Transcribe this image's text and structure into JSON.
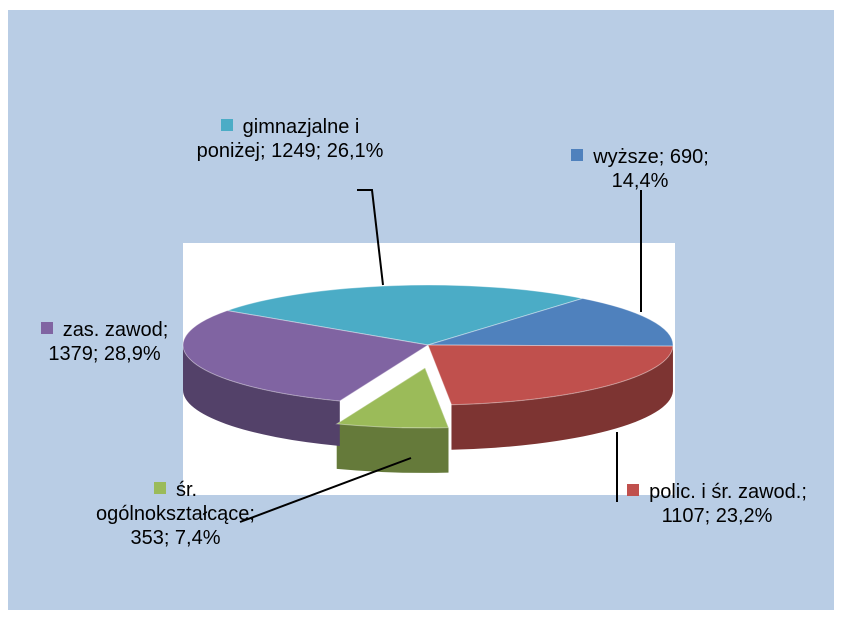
{
  "chart_data": {
    "type": "pie",
    "values": [
      1249,
      690,
      1107,
      353,
      1379
    ],
    "value_labels": [
      "gimnazjalne i poniżej; 1249; 26,1%",
      "wyższe; 690; 14,4%",
      "polic. i śr. zawod.; 1107; 23,2%",
      "śr. ogólnokształcące; 353; 7,4%",
      "zas. zawod; 1379; 28,9%"
    ],
    "colors": [
      "#4bacc6",
      "#4f81bd",
      "#c0504d",
      "#9bbb59",
      "#8064a2"
    ]
  }
}
